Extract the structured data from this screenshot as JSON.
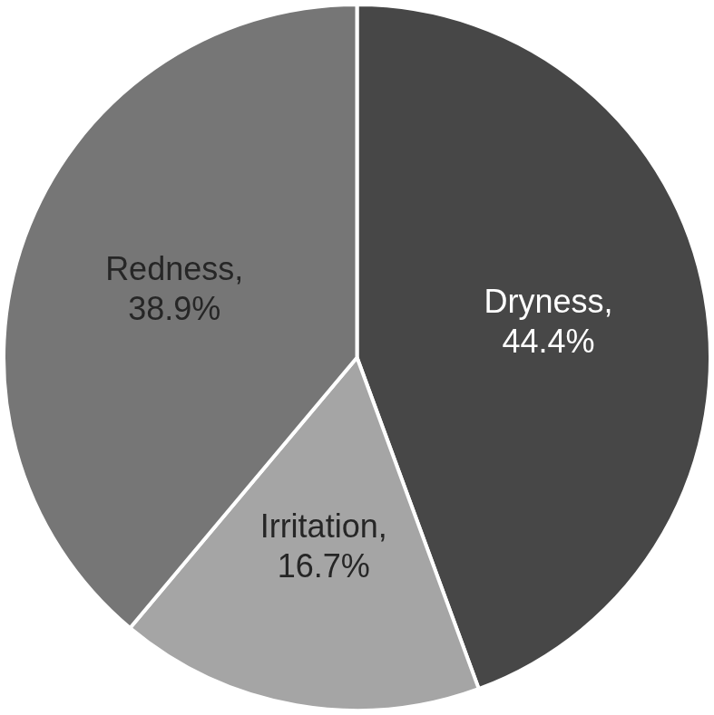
{
  "chart_data": {
    "type": "pie",
    "categories": [
      "Dryness,",
      "Irritation,",
      "Redness,"
    ],
    "values": [
      44.4,
      16.7,
      38.9
    ],
    "value_labels": [
      "44.4%",
      "16.7%",
      "38.9%"
    ],
    "colors": [
      "#474747",
      "#a5a5a5",
      "#767676"
    ],
    "data_labels": true
  }
}
